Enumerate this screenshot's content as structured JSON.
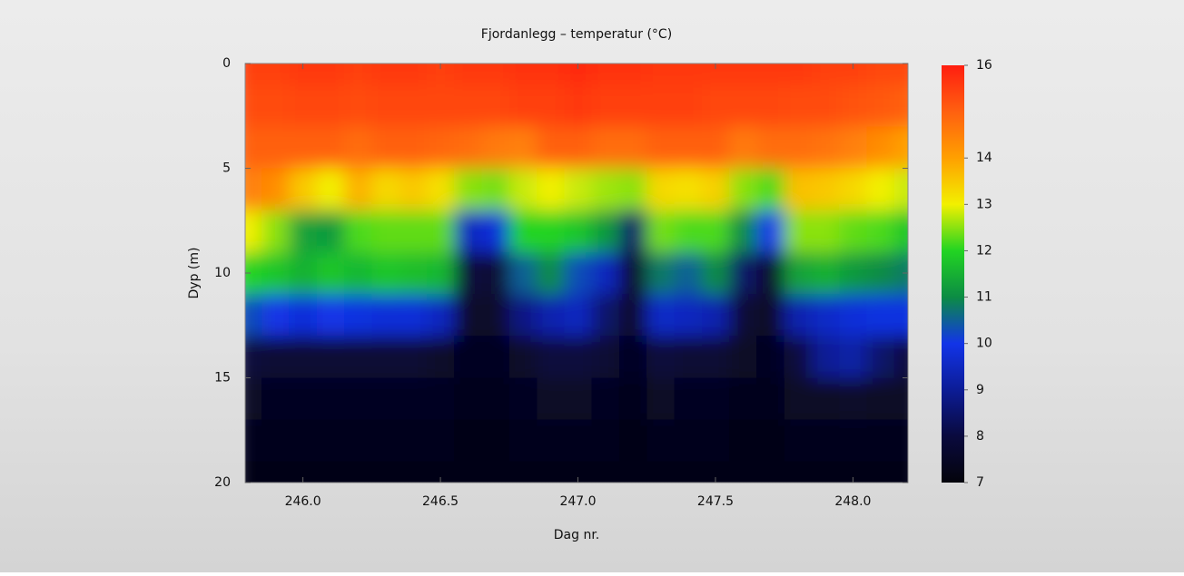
{
  "chart_data": {
    "type": "heatmap",
    "title": "Fjordanlegg – temperatur (°C)",
    "xlabel": "Dag nr.",
    "ylabel": "Dyp (m)",
    "x": [
      245.8,
      245.9,
      246.0,
      246.1,
      246.2,
      246.3,
      246.4,
      246.5,
      246.6,
      246.7,
      246.8,
      246.9,
      247.0,
      247.1,
      247.2,
      247.3,
      247.4,
      247.5,
      247.6,
      247.7,
      247.8,
      247.9,
      248.0,
      248.1,
      248.2
    ],
    "y": [
      0,
      2,
      4,
      6,
      8,
      10,
      12,
      14,
      16,
      18,
      20
    ],
    "z": [
      [
        15.5,
        15.3,
        15,
        14.5,
        13,
        12,
        10.3,
        8,
        7.5,
        7.3,
        7.2
      ],
      [
        15.5,
        15.3,
        15,
        14.3,
        12.5,
        11.8,
        10,
        7.8,
        7.4,
        7.3,
        7.2
      ],
      [
        15.6,
        15.4,
        15,
        13.5,
        11.3,
        11.5,
        9.8,
        7.8,
        7.4,
        7.3,
        7.2
      ],
      [
        15.6,
        15.4,
        15,
        13,
        11.2,
        11.8,
        10,
        7.8,
        7.4,
        7.3,
        7.2
      ],
      [
        15.5,
        15.3,
        14.8,
        13.8,
        12.2,
        11.6,
        9.9,
        7.8,
        7.4,
        7.3,
        7.2
      ],
      [
        15.6,
        15.4,
        15,
        13.3,
        12.3,
        11.8,
        9.8,
        7.8,
        7.4,
        7.3,
        7.2
      ],
      [
        15.6,
        15.4,
        15,
        13.5,
        12.3,
        11.7,
        9.8,
        7.8,
        7.4,
        7.3,
        7.2
      ],
      [
        15.5,
        15.4,
        14.9,
        13.2,
        12.3,
        11.6,
        9.5,
        7.6,
        7.4,
        7.3,
        7.2
      ],
      [
        15.6,
        15.4,
        14.8,
        12.5,
        9.5,
        8,
        7.6,
        7.4,
        7.3,
        7.2,
        7.2
      ],
      [
        15.6,
        15.4,
        14.6,
        12.4,
        9.8,
        7.8,
        7.6,
        7.4,
        7.3,
        7.2,
        7.2
      ],
      [
        15.7,
        15.5,
        14.5,
        12.8,
        12,
        10.5,
        8.8,
        7.6,
        7.4,
        7.3,
        7.2
      ],
      [
        15.7,
        15.5,
        15,
        13,
        12,
        11,
        9.3,
        8,
        7.5,
        7.3,
        7.2
      ],
      [
        15.8,
        15.6,
        15,
        12.8,
        11.8,
        10.3,
        9.5,
        8,
        7.5,
        7.3,
        7.2
      ],
      [
        15.7,
        15.5,
        14.8,
        12.6,
        11.2,
        9.5,
        8.5,
        7.8,
        7.4,
        7.3,
        7.2
      ],
      [
        15.7,
        15.5,
        14.8,
        12.5,
        8.5,
        7.6,
        7.5,
        7.4,
        7.3,
        7.2,
        7.2
      ],
      [
        15.6,
        15.5,
        15,
        13.3,
        12.4,
        10.8,
        9.6,
        8,
        7.5,
        7.3,
        7.2
      ],
      [
        15.6,
        15.5,
        15,
        13.2,
        12.2,
        10.5,
        9.5,
        7.8,
        7.4,
        7.3,
        7.2
      ],
      [
        15.6,
        15.4,
        15,
        13.4,
        12.2,
        11,
        9.3,
        7.8,
        7.4,
        7.3,
        7.2
      ],
      [
        15.6,
        15.4,
        14.6,
        12.5,
        11,
        8.5,
        7.8,
        7.5,
        7.3,
        7.2,
        7.2
      ],
      [
        15.6,
        15.4,
        14.8,
        12.2,
        10,
        7.7,
        7.5,
        7.4,
        7.3,
        7.2,
        7.2
      ],
      [
        15.6,
        15.3,
        14.8,
        13.6,
        12.5,
        11.3,
        9.3,
        8,
        7.5,
        7.3,
        7.2
      ],
      [
        15.5,
        15.3,
        14.7,
        13.5,
        12.5,
        11.5,
        9.6,
        9,
        7.5,
        7.3,
        7.2
      ],
      [
        15.5,
        15.2,
        14.5,
        13.3,
        12.3,
        11.2,
        9.8,
        9.2,
        7.6,
        7.3,
        7.2
      ],
      [
        15.4,
        15.1,
        14.3,
        13,
        12.2,
        11,
        9.9,
        8.5,
        7.5,
        7.3,
        7.2
      ],
      [
        15.4,
        15,
        14,
        12.8,
        11.8,
        10.8,
        9.9,
        8,
        7.5,
        7.3,
        7.2
      ]
    ],
    "xlim": [
      245.79,
      248.2
    ],
    "xticks": [
      {
        "value": 246.0,
        "label": "246.0"
      },
      {
        "value": 246.5,
        "label": "246.5"
      },
      {
        "value": 247.0,
        "label": "247.0"
      },
      {
        "value": 247.5,
        "label": "247.5"
      },
      {
        "value": 248.0,
        "label": "248.0"
      }
    ],
    "ylim": [
      0,
      20
    ],
    "yticks": [
      0,
      5,
      10,
      15,
      20
    ],
    "y_inverted": true,
    "clim": [
      7,
      16
    ],
    "cticks": [
      7,
      8,
      9,
      10,
      11,
      12,
      13,
      14,
      16
    ],
    "colorscale": [
      "#04040c",
      "#0a0a3e",
      "#0c1c96",
      "#1234e8",
      "#0c8c44",
      "#22d422",
      "#f2f000",
      "#ffa000",
      "#ff6010",
      "#ff1e10"
    ]
  }
}
